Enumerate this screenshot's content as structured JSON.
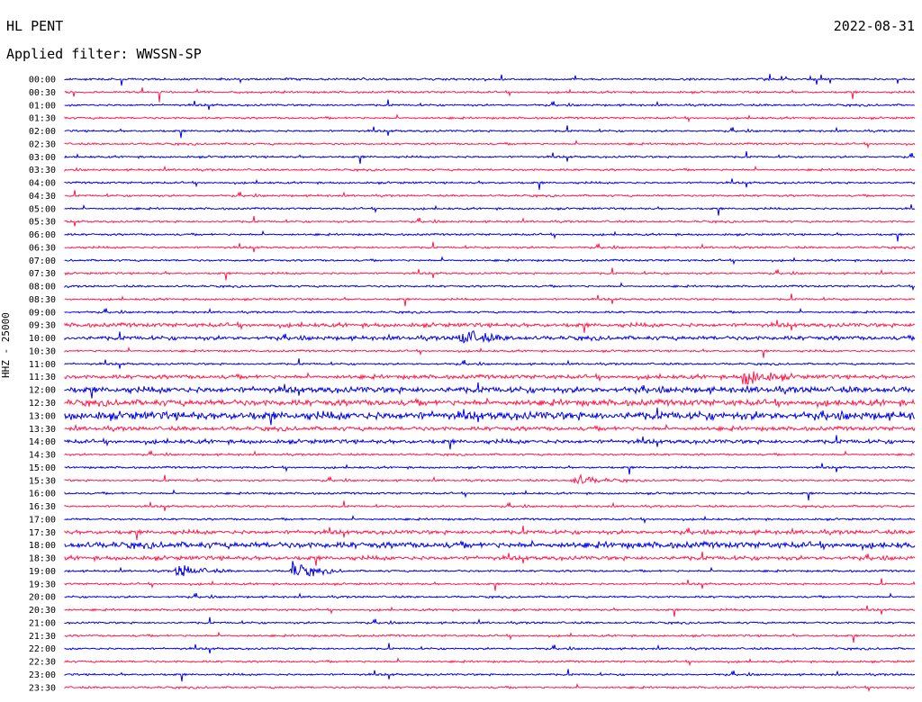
{
  "header": {
    "station": "HL PENT",
    "date": "2022-08-31",
    "filter": "Applied filter: WWSSN-SP"
  },
  "axis": {
    "ylabel": "HHZ - 25000"
  },
  "colors": {
    "trace_a": "#0000e6",
    "trace_b": "#ff1a4d"
  },
  "chart_data": {
    "type": "line",
    "title": "HL PENT",
    "subtitle": "Applied filter: WWSSN-SP",
    "ylabel": "HHZ - 25000",
    "row_labels": [
      "00:00",
      "00:30",
      "01:00",
      "01:30",
      "02:00",
      "02:30",
      "03:00",
      "03:30",
      "04:00",
      "04:30",
      "05:00",
      "05:30",
      "06:00",
      "06:30",
      "07:00",
      "07:30",
      "08:00",
      "08:30",
      "09:00",
      "09:30",
      "10:00",
      "10:30",
      "11:00",
      "11:30",
      "12:00",
      "12:30",
      "13:00",
      "13:30",
      "14:00",
      "14:30",
      "15:00",
      "15:30",
      "16:00",
      "16:30",
      "17:00",
      "17:30",
      "18:00",
      "18:30",
      "19:00",
      "19:30",
      "20:00",
      "20:30",
      "21:00",
      "21:30",
      "22:00",
      "22:30",
      "23:00",
      "23:30"
    ],
    "row_colors": "alternating blue/red",
    "noise_level": [
      1,
      1,
      1,
      1,
      1,
      1,
      1,
      1,
      1,
      1,
      1,
      1,
      1,
      1,
      1,
      1,
      1,
      1,
      1,
      2,
      2,
      1,
      1,
      2,
      3,
      3,
      4,
      2,
      2,
      1,
      1,
      1,
      1,
      1,
      1,
      2,
      3,
      2,
      1,
      1,
      1,
      1,
      1,
      1,
      1,
      1,
      1,
      1
    ],
    "events": [
      {
        "row": "10:00",
        "minute": 14,
        "amplitude": 9
      },
      {
        "row": "11:30",
        "minute": 24,
        "amplitude": 10
      },
      {
        "row": "15:30",
        "minute": 18,
        "amplitude": 6
      },
      {
        "row": "19:00",
        "minute": 4,
        "amplitude": 7
      },
      {
        "row": "19:00",
        "minute": 8,
        "amplitude": 9
      }
    ],
    "grid": false,
    "legend": "none"
  }
}
